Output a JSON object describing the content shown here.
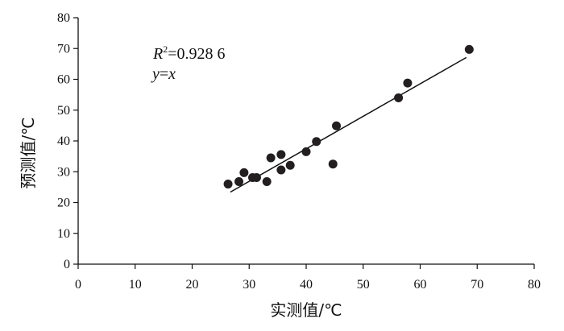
{
  "chart_data": {
    "type": "scatter",
    "xlabel": "实测值/℃",
    "ylabel": "预测值/℃",
    "xlim": [
      0,
      80
    ],
    "ylim": [
      0,
      80
    ],
    "xticks": [
      "0",
      "10",
      "20",
      "30",
      "40",
      "50",
      "60",
      "70",
      "80"
    ],
    "yticks": [
      "0",
      "10",
      "20",
      "30",
      "40",
      "50",
      "60",
      "70",
      "80"
    ],
    "grid": false,
    "series": [
      {
        "points": [
          {
            "x": 26.3,
            "y": 26.0
          },
          {
            "x": 28.2,
            "y": 26.8
          },
          {
            "x": 29.1,
            "y": 29.7
          },
          {
            "x": 30.6,
            "y": 28.1
          },
          {
            "x": 31.3,
            "y": 28.1
          },
          {
            "x": 33.1,
            "y": 26.8
          },
          {
            "x": 33.8,
            "y": 34.5
          },
          {
            "x": 35.6,
            "y": 35.6
          },
          {
            "x": 35.6,
            "y": 30.6
          },
          {
            "x": 37.2,
            "y": 32.1
          },
          {
            "x": 40.0,
            "y": 36.5
          },
          {
            "x": 41.8,
            "y": 39.8
          },
          {
            "x": 44.7,
            "y": 32.5
          },
          {
            "x": 45.3,
            "y": 44.9
          },
          {
            "x": 56.2,
            "y": 54.0
          },
          {
            "x": 57.8,
            "y": 58.8
          },
          {
            "x": 68.6,
            "y": 69.7
          }
        ]
      }
    ],
    "fit_line": {
      "x": [
        26.7,
        68.1
      ],
      "y": [
        23.4,
        67.1
      ]
    },
    "annotation": {
      "r2_prefix": "R",
      "r2_exp": "2",
      "r2_value": "=0.928 6",
      "eq_y": "y",
      "eq_eq": "=",
      "eq_x": "x"
    }
  }
}
